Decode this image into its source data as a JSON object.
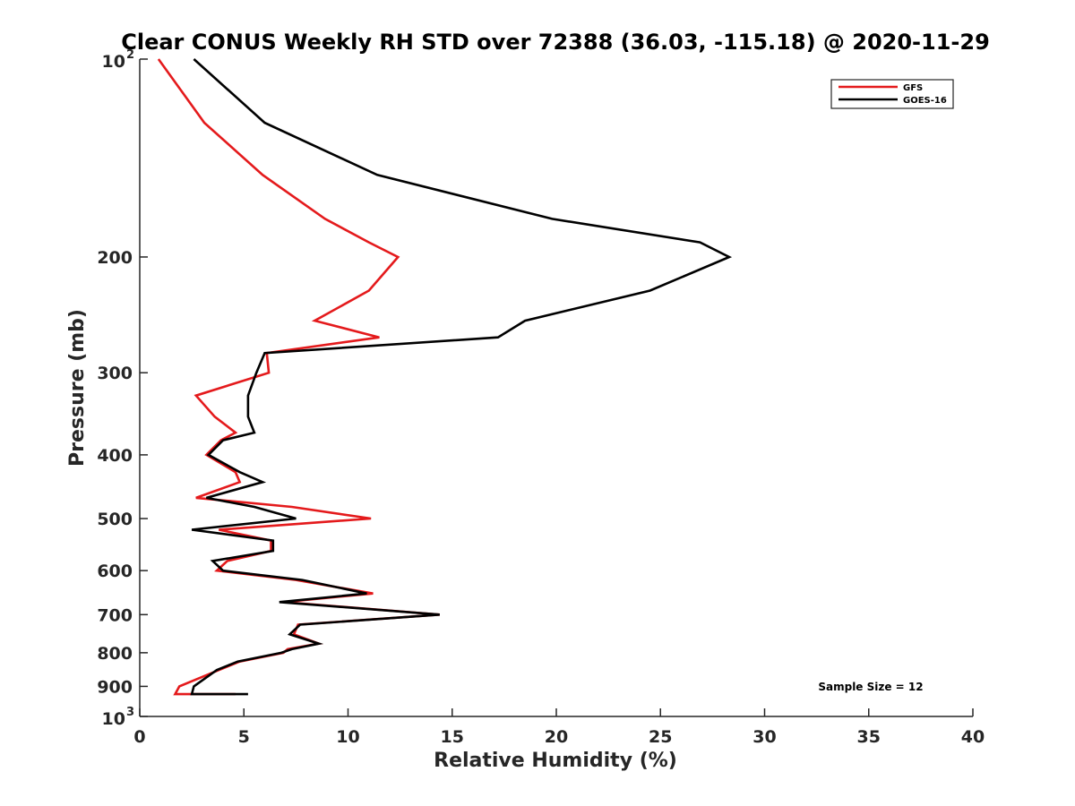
{
  "chart_data": {
    "type": "line",
    "title": "Clear CONUS Weekly RH STD over 72388 (36.03, -115.18) @ 2020-11-29",
    "xlabel": "Relative Humidity (%)",
    "ylabel": "Pressure (mb)",
    "xlim": [
      0,
      40
    ],
    "ylim": [
      100,
      1000
    ],
    "y_scale": "log",
    "y_reversed": true,
    "x_ticks": [
      0,
      5,
      10,
      15,
      20,
      25,
      30,
      35,
      40
    ],
    "x_tick_labels": [
      "0",
      "5",
      "10",
      "15",
      "20",
      "25",
      "30",
      "35",
      "40"
    ],
    "y_ticks": [
      200,
      300,
      400,
      500,
      600,
      700,
      800,
      900
    ],
    "y_tick_labels": [
      "200",
      "300",
      "400",
      "500",
      "600",
      "700",
      "800",
      "900"
    ],
    "y_power_ticks": [
      {
        "value": 100,
        "base": "10",
        "exp": "2"
      },
      {
        "value": 1000,
        "base": "10",
        "exp": "3"
      }
    ],
    "grid": false,
    "legend_position": "top-right",
    "annotation": "Sample Size = 12",
    "series": [
      {
        "name": "GFS",
        "color": "#e41a1c",
        "points": [
          [
            0.9,
            100
          ],
          [
            3.1,
            125
          ],
          [
            5.9,
            150
          ],
          [
            8.9,
            175
          ],
          [
            11.0,
            190
          ],
          [
            12.4,
            200
          ],
          [
            11.0,
            225
          ],
          [
            8.4,
            250
          ],
          [
            11.5,
            265
          ],
          [
            6.1,
            280
          ],
          [
            6.2,
            300
          ],
          [
            2.7,
            325
          ],
          [
            3.6,
            350
          ],
          [
            4.6,
            370
          ],
          [
            3.9,
            380
          ],
          [
            3.2,
            400
          ],
          [
            4.6,
            425
          ],
          [
            4.8,
            440
          ],
          [
            2.7,
            465
          ],
          [
            7.3,
            480
          ],
          [
            11.1,
            500
          ],
          [
            3.8,
            520
          ],
          [
            6.3,
            540
          ],
          [
            6.3,
            560
          ],
          [
            4.2,
            580
          ],
          [
            3.7,
            600
          ],
          [
            7.5,
            620
          ],
          [
            11.2,
            650
          ],
          [
            6.9,
            670
          ],
          [
            14.4,
            700
          ],
          [
            7.6,
            725
          ],
          [
            7.4,
            750
          ],
          [
            8.6,
            775
          ],
          [
            7.1,
            790
          ],
          [
            6.9,
            800
          ],
          [
            4.8,
            825
          ],
          [
            3.8,
            850
          ],
          [
            1.9,
            900
          ],
          [
            1.7,
            925
          ],
          [
            4.6,
            925
          ]
        ]
      },
      {
        "name": "GOES-16",
        "color": "#000000",
        "points": [
          [
            2.6,
            100
          ],
          [
            6.0,
            125
          ],
          [
            11.4,
            150
          ],
          [
            19.8,
            175
          ],
          [
            26.9,
            190
          ],
          [
            28.3,
            200
          ],
          [
            24.5,
            225
          ],
          [
            18.5,
            250
          ],
          [
            17.2,
            265
          ],
          [
            6.0,
            280
          ],
          [
            5.6,
            300
          ],
          [
            5.2,
            325
          ],
          [
            5.2,
            350
          ],
          [
            5.5,
            370
          ],
          [
            4.0,
            380
          ],
          [
            3.3,
            400
          ],
          [
            4.8,
            425
          ],
          [
            5.9,
            440
          ],
          [
            3.2,
            465
          ],
          [
            5.5,
            480
          ],
          [
            7.5,
            500
          ],
          [
            2.5,
            520
          ],
          [
            6.4,
            540
          ],
          [
            6.4,
            560
          ],
          [
            3.5,
            580
          ],
          [
            4.0,
            600
          ],
          [
            7.8,
            620
          ],
          [
            10.9,
            650
          ],
          [
            6.7,
            670
          ],
          [
            14.4,
            700
          ],
          [
            7.7,
            725
          ],
          [
            7.2,
            750
          ],
          [
            8.6,
            775
          ],
          [
            7.3,
            790
          ],
          [
            6.8,
            800
          ],
          [
            4.7,
            825
          ],
          [
            3.7,
            850
          ],
          [
            2.6,
            900
          ],
          [
            2.5,
            925
          ],
          [
            5.2,
            925
          ]
        ]
      }
    ]
  }
}
